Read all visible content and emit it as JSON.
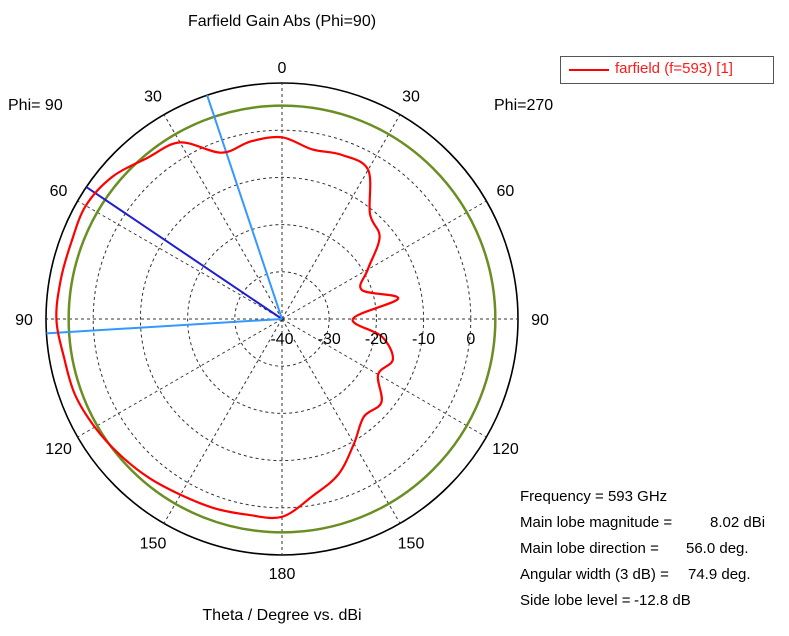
{
  "chart_data": {
    "type": "polar-line",
    "title": "Farfield Gain Abs (Phi=90)",
    "xlabel": "Theta / Degree vs. dBi",
    "side_labels": {
      "left": "Phi= 90",
      "right": "Phi=270"
    },
    "angle_labels": {
      "top": "0",
      "bottom": "180",
      "left_side": [
        "30",
        "60",
        "90",
        "120",
        "150"
      ],
      "right_side": [
        "30",
        "60",
        "90",
        "120",
        "150"
      ]
    },
    "radial_axis": {
      "min": -40,
      "max": 10,
      "grid_step": 10,
      "tick_labels": [
        "-40",
        "-30",
        "-20",
        "-10",
        "0"
      ]
    },
    "reference_level": {
      "value": 5.2,
      "color": "#6b8e23"
    },
    "series": [
      {
        "name": "farfield (f=593) [1]",
        "color": "#ff0000",
        "unit": "dBi",
        "angle_deg": [
          0,
          10,
          20,
          30,
          40,
          50,
          60,
          70,
          80,
          90,
          100,
          110,
          120,
          130,
          140,
          150,
          160,
          170,
          180,
          190,
          200,
          210,
          220,
          230,
          240,
          250,
          260,
          270,
          280,
          290,
          300,
          310,
          320,
          330,
          340,
          350
        ],
        "values": [
          -1.5,
          -1.8,
          -2.5,
          3.2,
          4.5,
          6.9,
          8.0,
          7.5,
          7.6,
          7.8,
          6.9,
          6.7,
          5.8,
          4.8,
          3.9,
          3.0,
          2.6,
          2.1,
          1.9,
          -2.0,
          -5.0,
          -9.5,
          -13.0,
          -12.5,
          -16.5,
          -15.0,
          -18.5,
          -25.0,
          -15.0,
          -22.0,
          -19.0,
          -13.0,
          -11.0,
          -3.5,
          -3.0,
          -3.5
        ]
      }
    ],
    "markers": [
      {
        "name": "main-lobe-direction",
        "angle_deg": 56,
        "color": "#1f1fcf"
      },
      {
        "name": "3db-beam-edge-1",
        "angle_deg": 18.5,
        "color": "#3399ff"
      },
      {
        "name": "3db-beam-edge-2",
        "angle_deg": 93.5,
        "color": "#3399ff"
      }
    ],
    "info": [
      {
        "key": "Frequency = 593 GHz",
        "value": ""
      },
      {
        "key": "Main lobe magnitude =",
        "value": "8.02 dBi"
      },
      {
        "key": "Main lobe direction =",
        "value": "56.0 deg."
      },
      {
        "key": "Angular width (3 dB) =",
        "value": "74.9 deg."
      },
      {
        "key": "Side lobe level =",
        "value": "-12.8 dB"
      }
    ]
  }
}
